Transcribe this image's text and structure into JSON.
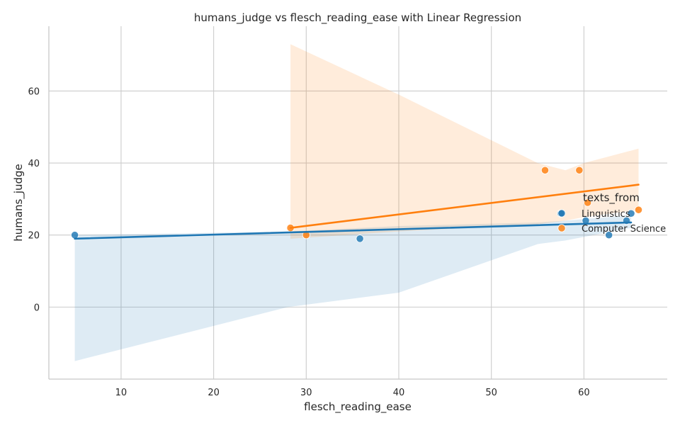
{
  "chart_data": {
    "type": "scatter",
    "title": "humans_judge vs flesch_reading_ease with Linear Regression",
    "xlabel": "flesch_reading_ease",
    "ylabel": "humans_judge",
    "xlim": [
      2.2,
      69
    ],
    "ylim": [
      -20,
      78
    ],
    "xticks": [
      10,
      20,
      30,
      40,
      50,
      60
    ],
    "yticks": [
      0,
      20,
      40,
      60
    ],
    "grid": true,
    "legend": {
      "title": "texts_from",
      "placement": "right"
    },
    "series": [
      {
        "name": "Linguistics",
        "color": "#1f77b4",
        "x": [
          5,
          35.8,
          57.5,
          60.2,
          62.7,
          64.6,
          65.1
        ],
        "y": [
          20,
          19,
          26,
          24,
          20,
          24,
          26
        ],
        "fit": {
          "x": [
            5,
            65.1
          ],
          "y": [
            19,
            23.5
          ]
        },
        "ci": {
          "x": [
            5,
            28,
            40,
            55,
            58,
            65.1
          ],
          "lower": [
            -15,
            0,
            4,
            17.5,
            18.5,
            22
          ],
          "upper": [
            20,
            21,
            22.5,
            23.5,
            24,
            25.5
          ]
        }
      },
      {
        "name": "Computer Science",
        "color": "#ff7f0e",
        "x": [
          28.3,
          30,
          55.8,
          59.5,
          60.4,
          65.9
        ],
        "y": [
          22,
          20,
          38,
          38,
          29,
          27
        ],
        "fit": {
          "x": [
            28.3,
            65.9
          ],
          "y": [
            22,
            34
          ]
        },
        "ci": {
          "x": [
            28.3,
            40,
            55,
            58,
            60,
            65.9
          ],
          "lower": [
            19,
            21,
            23,
            24,
            25,
            27
          ],
          "upper": [
            73,
            59,
            40,
            38,
            40,
            44
          ]
        }
      }
    ]
  }
}
